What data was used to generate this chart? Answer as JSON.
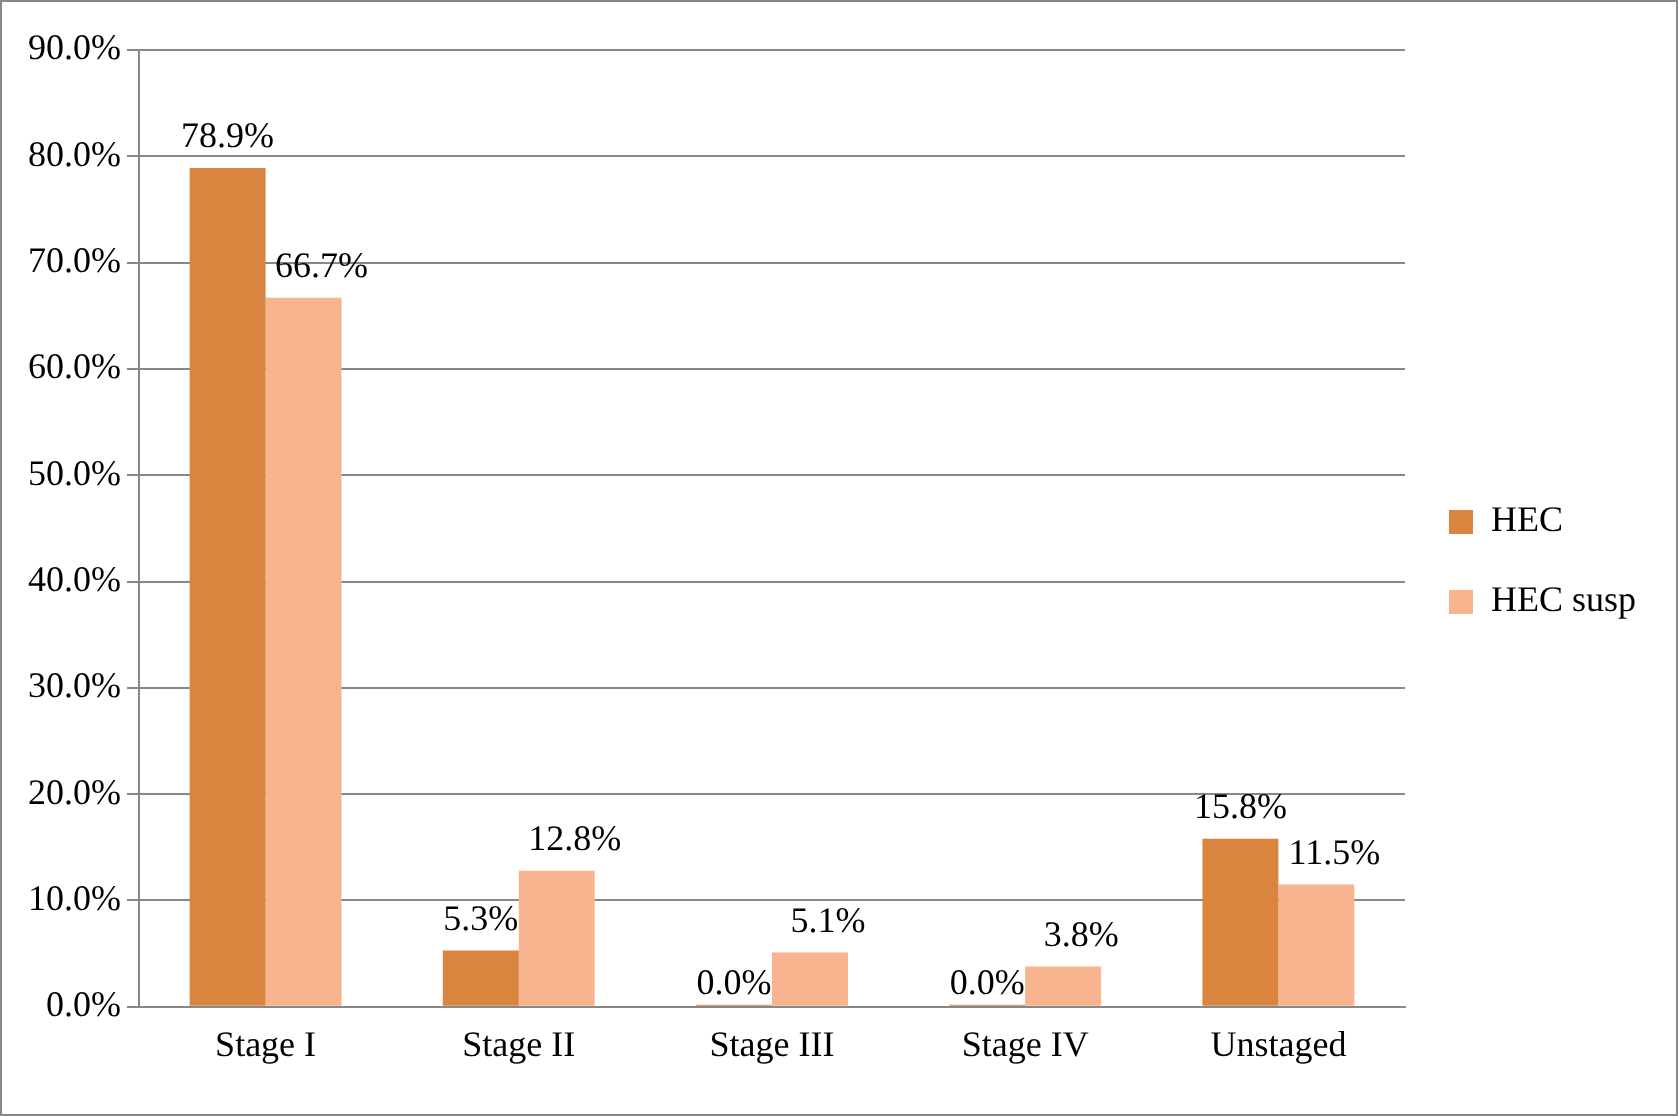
{
  "chart_data": {
    "type": "bar",
    "categories": [
      "Stage I",
      "Stage II",
      "Stage III",
      "Stage IV",
      "Unstaged"
    ],
    "series": [
      {
        "name": "HEC",
        "color": "#d9843f",
        "values": [
          78.9,
          5.3,
          0.0,
          0.0,
          15.8
        ],
        "value_labels": [
          "78.9%",
          "5.3%",
          "0.0%",
          "0.0%",
          "15.8%"
        ]
      },
      {
        "name": "HEC susp",
        "color": "#f8b48e",
        "values": [
          66.7,
          12.8,
          5.1,
          3.8,
          11.5
        ],
        "value_labels": [
          "66.7%",
          "12.8%",
          "5.1%",
          "3.8%",
          "11.5%"
        ]
      }
    ],
    "ylim": [
      0,
      90
    ],
    "yticks": [
      {
        "value": 0,
        "label": "0.0%"
      },
      {
        "value": 10,
        "label": "10.0%"
      },
      {
        "value": 20,
        "label": "20.0%"
      },
      {
        "value": 30,
        "label": "30.0%"
      },
      {
        "value": 40,
        "label": "40.0%"
      },
      {
        "value": 50,
        "label": "50.0%"
      },
      {
        "value": 60,
        "label": "60.0%"
      },
      {
        "value": 70,
        "label": "70.0%"
      },
      {
        "value": 80,
        "label": "80.0%"
      },
      {
        "value": 90,
        "label": "90.0%"
      }
    ],
    "grid": "y",
    "legend": "right"
  }
}
